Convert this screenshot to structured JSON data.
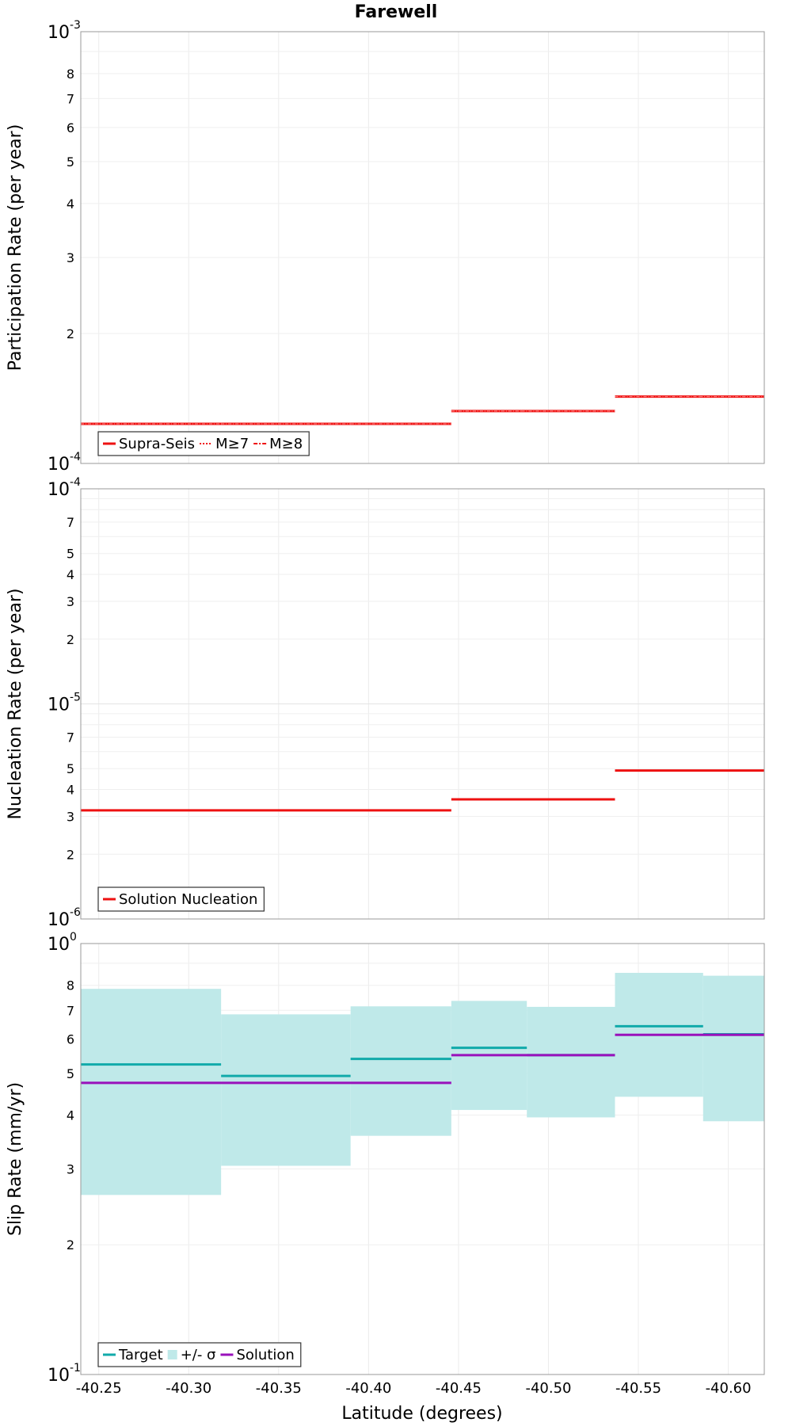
{
  "title": "Farewell",
  "xlabel": "Latitude (degrees)",
  "chart_data": [
    {
      "type": "line",
      "title": "Farewell",
      "ylabel": "Participation Rate (per year)",
      "yscale": "log",
      "ylim": [
        0.0001,
        0.001
      ],
      "xlim": [
        -40.24,
        -40.62
      ],
      "x_ticks": [
        "-40.25",
        "-40.30",
        "-40.35",
        "-40.40",
        "-40.45",
        "-40.50",
        "-40.55",
        "-40.60"
      ],
      "y_ticks": {
        "decades": [
          {
            "base": "10",
            "exp": "-4"
          },
          {
            "base": "10",
            "exp": "-3"
          }
        ],
        "minor": [
          "2",
          "3",
          "4",
          "5",
          "6",
          "7",
          "8"
        ]
      },
      "legend": {
        "position": "bottom-left",
        "entries": [
          "Supra-Seis",
          "M≥7",
          "M≥8"
        ]
      },
      "series": [
        {
          "name": "Supra-Seis",
          "color": "#ee1111",
          "style": "solid",
          "steps": [
            {
              "x0": -40.24,
              "x1": -40.318,
              "y": 0.0001235
            },
            {
              "x0": -40.318,
              "x1": -40.39,
              "y": 0.0001235
            },
            {
              "x0": -40.39,
              "x1": -40.446,
              "y": 0.0001235
            },
            {
              "x0": -40.446,
              "x1": -40.485,
              "y": 0.0001322
            },
            {
              "x0": -40.485,
              "x1": -40.537,
              "y": 0.0001322
            },
            {
              "x0": -40.537,
              "x1": -40.584,
              "y": 0.0001428
            },
            {
              "x0": -40.584,
              "x1": -40.62,
              "y": 0.0001428
            }
          ]
        },
        {
          "name": "M≥7",
          "color": "#ee1111",
          "style": "dotted",
          "same_as": "Supra-Seis"
        },
        {
          "name": "M≥8",
          "color": "#ee1111",
          "style": "dashdot",
          "same_as": "Supra-Seis"
        }
      ]
    },
    {
      "type": "line",
      "ylabel": "Nucleation Rate (per year)",
      "yscale": "log",
      "ylim": [
        1e-06,
        0.0001
      ],
      "xlim": [
        -40.24,
        -40.62
      ],
      "y_ticks": {
        "decades": [
          {
            "base": "10",
            "exp": "-6"
          },
          {
            "base": "10",
            "exp": "-5"
          },
          {
            "base": "10",
            "exp": "-4"
          }
        ],
        "minor": [
          "2",
          "3",
          "4",
          "5",
          "7"
        ]
      },
      "legend": {
        "position": "bottom-left",
        "entries": [
          "Solution Nucleation"
        ]
      },
      "series": [
        {
          "name": "Solution Nucleation",
          "color": "#ee1111",
          "steps": [
            {
              "x0": -40.24,
              "x1": -40.446,
              "y": 3.2e-06
            },
            {
              "x0": -40.446,
              "x1": -40.537,
              "y": 3.6e-06
            },
            {
              "x0": -40.537,
              "x1": -40.62,
              "y": 4.9e-06
            }
          ]
        }
      ]
    },
    {
      "type": "line",
      "ylabel": "Slip Rate (mm/yr)",
      "yscale": "log",
      "ylim": [
        0.1,
        1
      ],
      "xlim": [
        -40.24,
        -40.62
      ],
      "y_ticks": {
        "decades": [
          {
            "base": "10",
            "exp": "-1"
          },
          {
            "base": "10",
            "exp": "0"
          }
        ],
        "minor": [
          "2",
          "3",
          "4",
          "5",
          "6",
          "7",
          "8"
        ]
      },
      "legend": {
        "position": "bottom-left",
        "entries": [
          "Target",
          "+/- σ",
          "Solution"
        ]
      },
      "band": {
        "name": "+/- σ",
        "color": "#bfe9e9",
        "steps": [
          {
            "x0": -40.24,
            "x1": -40.318,
            "low": 0.261,
            "high": 0.785
          },
          {
            "x0": -40.318,
            "x1": -40.39,
            "low": 0.305,
            "high": 0.685
          },
          {
            "x0": -40.39,
            "x1": -40.446,
            "low": 0.358,
            "high": 0.715
          },
          {
            "x0": -40.446,
            "x1": -40.488,
            "low": 0.411,
            "high": 0.736
          },
          {
            "x0": -40.488,
            "x1": -40.537,
            "low": 0.395,
            "high": 0.713
          },
          {
            "x0": -40.537,
            "x1": -40.586,
            "low": 0.441,
            "high": 0.855
          },
          {
            "x0": -40.586,
            "x1": -40.62,
            "low": 0.387,
            "high": 0.842
          }
        ]
      },
      "series": [
        {
          "name": "Target",
          "color": "#11aaaa",
          "steps": [
            {
              "x0": -40.24,
              "x1": -40.318,
              "y": 0.524
            },
            {
              "x0": -40.318,
              "x1": -40.39,
              "y": 0.493
            },
            {
              "x0": -40.39,
              "x1": -40.446,
              "y": 0.54
            },
            {
              "x0": -40.446,
              "x1": -40.488,
              "y": 0.573
            },
            {
              "x0": -40.488,
              "x1": -40.537,
              "y": 0.551
            },
            {
              "x0": -40.537,
              "x1": -40.586,
              "y": 0.643
            },
            {
              "x0": -40.586,
              "x1": -40.62,
              "y": 0.616
            }
          ]
        },
        {
          "name": "Solution",
          "color": "#9911bb",
          "steps": [
            {
              "x0": -40.24,
              "x1": -40.446,
              "y": 0.475
            },
            {
              "x0": -40.446,
              "x1": -40.537,
              "y": 0.551
            },
            {
              "x0": -40.537,
              "x1": -40.62,
              "y": 0.614
            }
          ]
        }
      ]
    }
  ]
}
